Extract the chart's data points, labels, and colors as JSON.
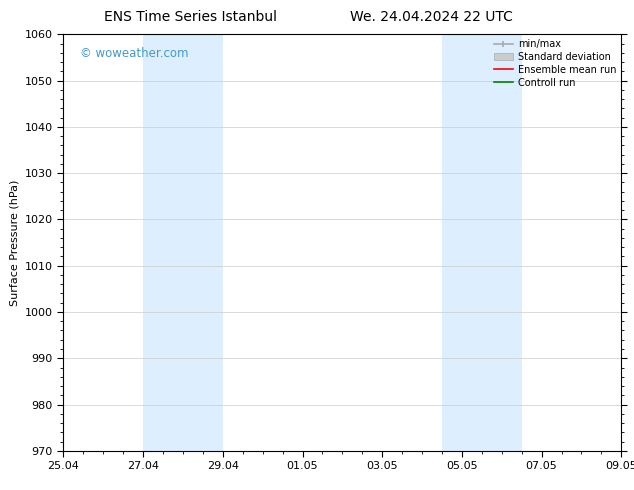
{
  "title_left": "ENS Time Series Istanbul",
  "title_right": "We. 24.04.2024 22 UTC",
  "ylabel": "Surface Pressure (hPa)",
  "ylim": [
    970,
    1060
  ],
  "yticks": [
    970,
    980,
    990,
    1000,
    1010,
    1020,
    1030,
    1040,
    1050,
    1060
  ],
  "xtick_labels": [
    "25.04",
    "27.04",
    "29.04",
    "01.05",
    "03.05",
    "05.05",
    "07.05",
    "09.05"
  ],
  "xtick_positions": [
    0,
    2,
    4,
    6,
    8,
    10,
    12,
    14
  ],
  "xlim": [
    0,
    14
  ],
  "background_color": "#ffffff",
  "plot_bg_color": "#ffffff",
  "shaded_regions": [
    {
      "x_start": 2,
      "x_end": 4,
      "color": "#ddeeff"
    },
    {
      "x_start": 9.5,
      "x_end": 11.5,
      "color": "#ddeeff"
    }
  ],
  "watermark_text": "© woweather.com",
  "watermark_color": "#4499cc",
  "legend_items": [
    {
      "label": "min/max",
      "color": "#aaaaaa",
      "lw": 1.2
    },
    {
      "label": "Standard deviation",
      "color": "#cccccc",
      "lw": 5
    },
    {
      "label": "Ensemble mean run",
      "color": "#ff0000",
      "lw": 1.2
    },
    {
      "label": "Controll run",
      "color": "#008000",
      "lw": 1.2
    }
  ],
  "grid_color": "#cccccc",
  "grid_lw": 0.5,
  "tick_color": "#000000",
  "title_fontsize": 10,
  "axis_fontsize": 8,
  "legend_fontsize": 7,
  "ylabel_fontsize": 8
}
